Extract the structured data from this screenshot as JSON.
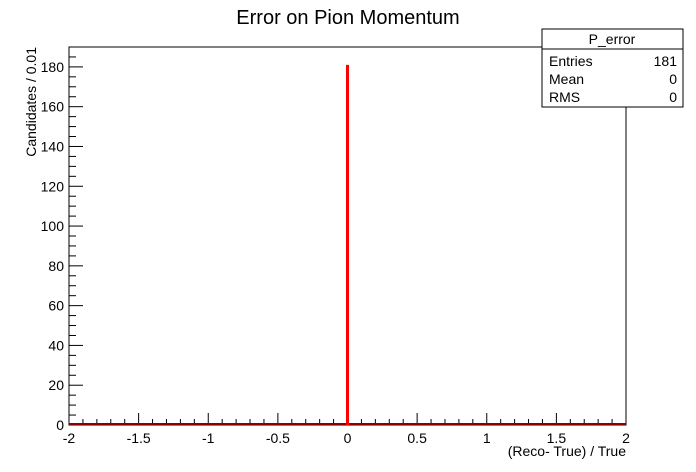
{
  "chart_data": {
    "type": "histogram",
    "title": "Error on Pion Momentum",
    "xlabel": "(Reco- True) / True",
    "ylabel": "Candidates / 0.01",
    "xlim": [
      -2,
      2
    ],
    "ylim": [
      0,
      190
    ],
    "x_ticks": [
      "-2",
      "-1.5",
      "-1",
      "-0.5",
      "0",
      "0.5",
      "1",
      "1.5",
      "2"
    ],
    "y_ticks": [
      "0",
      "20",
      "40",
      "60",
      "80",
      "100",
      "120",
      "140",
      "160",
      "180"
    ],
    "bin_width": 0.01,
    "series": [
      {
        "x": [
          0.0
        ],
        "values": [
          181
        ]
      }
    ],
    "line_color": "#ff0000",
    "baseline_color": "#8b0000",
    "grid": false,
    "stats_box": {
      "name": "P_error",
      "rows": [
        {
          "label": "Entries",
          "value": "181"
        },
        {
          "label": "Mean",
          "value": "0"
        },
        {
          "label": "RMS",
          "value": "0"
        }
      ],
      "placement": "top-right"
    }
  }
}
